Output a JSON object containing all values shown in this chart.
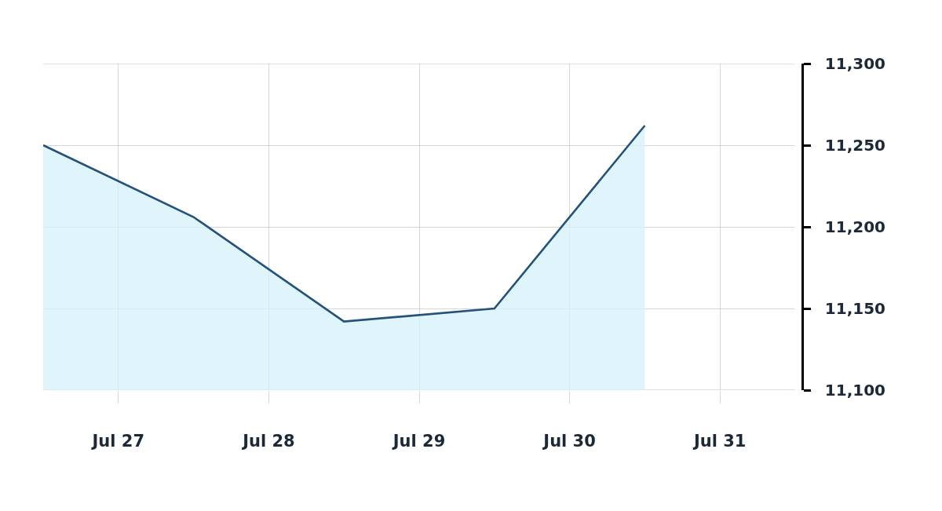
{
  "chart_data": {
    "type": "area",
    "x": [
      "--07-26T12:00",
      "--07-27T12:00",
      "--07-28T12:00",
      "--07-29T12:00",
      "--07-30T12:00"
    ],
    "series": [
      {
        "color": "#24527a",
        "values": [
          11250,
          11206,
          11142,
          11150,
          11262
        ]
      }
    ],
    "xlim": [
      "--07-26T12:00",
      "--07-31T12:00"
    ],
    "xticks": [
      {
        "value": "--07-27",
        "label": "Jul 27"
      },
      {
        "value": "--07-28",
        "label": "Jul 28"
      },
      {
        "value": "--07-29",
        "label": "Jul 29"
      },
      {
        "value": "--07-30",
        "label": "Jul 30"
      },
      {
        "value": "--07-31",
        "label": "Jul 31"
      }
    ],
    "ylim": [
      11100,
      11300
    ],
    "yticks": [
      {
        "value": 11100,
        "label": "11,100"
      },
      {
        "value": 11150,
        "label": "11,150"
      },
      {
        "value": 11200,
        "label": "11,200"
      },
      {
        "value": 11250,
        "label": "11,250"
      },
      {
        "value": 11300,
        "label": "11,300"
      }
    ],
    "grid": true
  }
}
